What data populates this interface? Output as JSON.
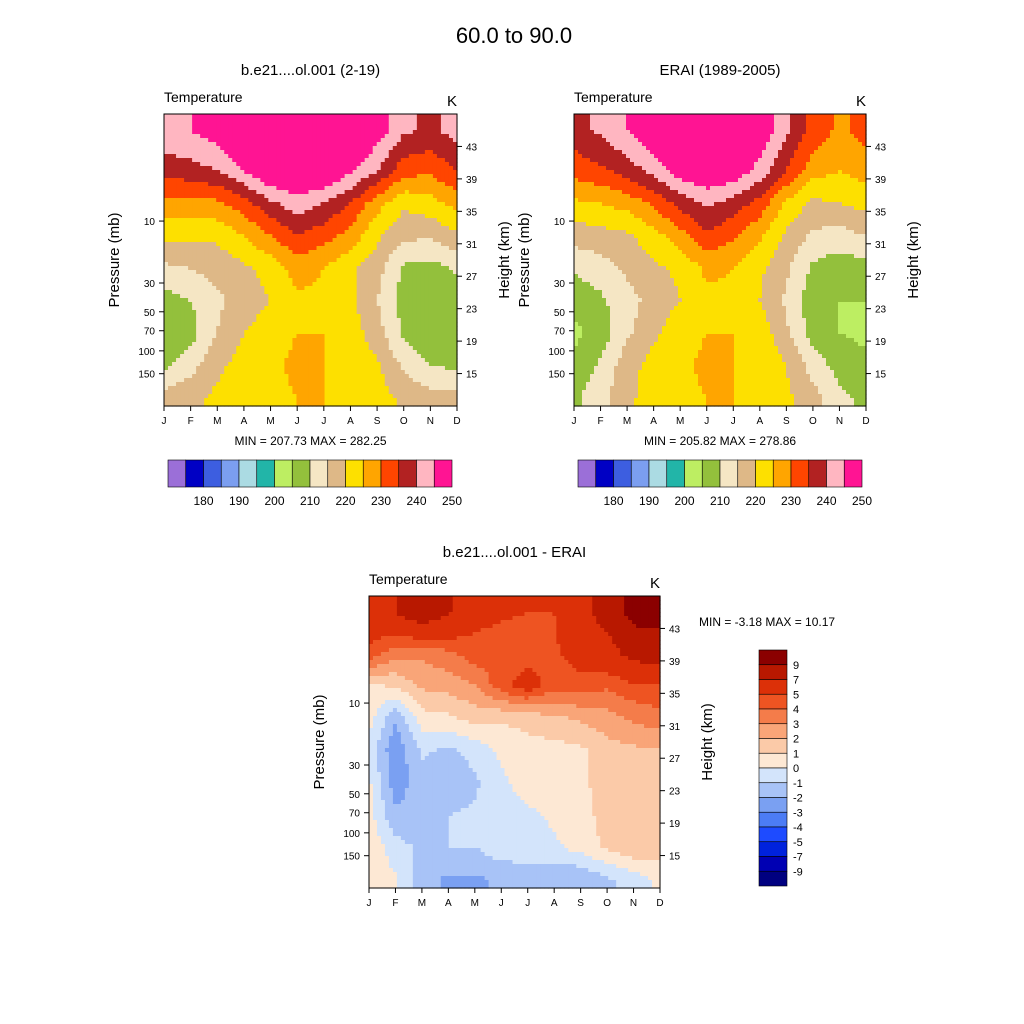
{
  "figure": {
    "title": "60.0 to  90.0"
  },
  "colors": {
    "abs_palette": [
      "#9b6fd8",
      "#0000c4",
      "#3d5ee0",
      "#7b9ef0",
      "#abdbe3",
      "#22b5a8",
      "#bdee62",
      "#93c03c",
      "#f5e6c4",
      "#deb887",
      "#fde000",
      "#ffa500",
      "#ff4500",
      "#b22222",
      "#ffb6c1",
      "#ff1493"
    ],
    "diff_palette": [
      "#000080",
      "#0000b3",
      "#0022dd",
      "#1e4bff",
      "#4c7cf5",
      "#7aa0f2",
      "#a8c3f7",
      "#d3e4fb",
      "#fde8d4",
      "#fbcaa8",
      "#f9a578",
      "#f47c4a",
      "#ee5422",
      "#dc3008",
      "#b81800",
      "#8b0000"
    ]
  },
  "months": [
    "J",
    "F",
    "M",
    "A",
    "M",
    "J",
    "J",
    "A",
    "S",
    "O",
    "N",
    "D"
  ],
  "pressure_ticks": [
    "10",
    "30",
    "50",
    "70",
    "100",
    "150"
  ],
  "height_ticks": [
    "43",
    "39",
    "35",
    "31",
    "27",
    "23",
    "19",
    "15"
  ],
  "labels": {
    "left_ylabel": "Pressure (mb)",
    "right_ylabel": "Height (km)",
    "variable": "Temperature",
    "units": "K"
  },
  "panels": {
    "model": {
      "title": "b.e21....ol.001 (2-19)",
      "stats": "MIN = 207.73  MAX = 282.25"
    },
    "obs": {
      "title": "ERAI (1989-2005)",
      "stats": "MIN = 205.82  MAX = 278.86"
    },
    "diff": {
      "title": "b.e21....ol.001 - ERAI",
      "stats": "MIN =  -3.18  MAX =  10.17"
    }
  },
  "colorbars": {
    "abs_labels": [
      "180",
      "190",
      "200",
      "210",
      "220",
      "230",
      "240",
      "250"
    ],
    "diff_labels": [
      "9",
      "7",
      "5",
      "4",
      "3",
      "2",
      "1",
      "0",
      "-1",
      "-2",
      "-3",
      "-4",
      "-5",
      "-7",
      "-9"
    ]
  },
  "chart_data": [
    {
      "type": "heatmap",
      "title": "b.e21....ol.001 (2-19)",
      "subtitle": "Temperature",
      "units": "K",
      "xlabel": "",
      "ylabel": "Pressure (mb)",
      "y2label": "Height (km)",
      "x": [
        "J",
        "F",
        "M",
        "A",
        "M",
        "J",
        "J",
        "A",
        "S",
        "O",
        "N",
        "D"
      ],
      "y_height_km": [
        12,
        16,
        20,
        24,
        28,
        32,
        36,
        40,
        45
      ],
      "z": [
        [
          222,
          224,
          226,
          228,
          229,
          230,
          230,
          229,
          227,
          224,
          222,
          222
        ],
        [
          214,
          218,
          224,
          227,
          229,
          231,
          230,
          229,
          226,
          219,
          215,
          214
        ],
        [
          211,
          213,
          220,
          225,
          228,
          230,
          230,
          228,
          222,
          214,
          211,
          211
        ],
        [
          213,
          215,
          219,
          222,
          225,
          229,
          229,
          226,
          220,
          213,
          211,
          212
        ],
        [
          219,
          220,
          222,
          224,
          227,
          232,
          230,
          226,
          222,
          214,
          213,
          216
        ],
        [
          226,
          226,
          226,
          230,
          235,
          240,
          237,
          233,
          226,
          221,
          221,
          224
        ],
        [
          233,
          233,
          234,
          238,
          244,
          248,
          245,
          240,
          232,
          226,
          228,
          232
        ],
        [
          242,
          243,
          245,
          250,
          256,
          256,
          256,
          251,
          245,
          237,
          236,
          240
        ],
        [
          249,
          250,
          253,
          257,
          260,
          263,
          260,
          258,
          253,
          246,
          244,
          247
        ]
      ],
      "min": 207.73,
      "max": 282.25
    },
    {
      "type": "heatmap",
      "title": "ERAI (1989-2005)",
      "subtitle": "Temperature",
      "units": "K",
      "xlabel": "",
      "ylabel": "Pressure (mb)",
      "y2label": "Height (km)",
      "x": [
        "J",
        "F",
        "M",
        "A",
        "M",
        "J",
        "J",
        "A",
        "S",
        "O",
        "N",
        "D"
      ],
      "y_height_km": [
        12,
        16,
        20,
        24,
        28,
        32,
        36,
        40,
        45
      ],
      "z": [
        [
          214,
          218,
          224,
          227,
          229,
          230,
          230,
          229,
          226,
          222,
          216,
          214
        ],
        [
          211,
          216,
          223,
          227,
          229,
          231,
          230,
          229,
          225,
          218,
          213,
          211
        ],
        [
          209,
          212,
          219,
          224,
          228,
          230,
          230,
          228,
          221,
          213,
          210,
          209
        ],
        [
          211,
          214,
          218,
          222,
          225,
          229,
          229,
          225,
          219,
          212,
          210,
          210
        ],
        [
          216,
          218,
          221,
          224,
          226,
          231,
          230,
          226,
          221,
          214,
          212,
          213
        ],
        [
          222,
          223,
          224,
          228,
          233,
          239,
          236,
          231,
          224,
          219,
          218,
          220
        ],
        [
          229,
          230,
          232,
          236,
          242,
          246,
          243,
          238,
          229,
          224,
          225,
          227
        ],
        [
          237,
          239,
          242,
          247,
          253,
          255,
          254,
          248,
          240,
          232,
          230,
          232
        ],
        [
          243,
          246,
          250,
          255,
          260,
          262,
          259,
          254,
          246,
          238,
          234,
          237
        ]
      ],
      "min": 205.82,
      "max": 278.86
    },
    {
      "type": "heatmap",
      "title": "b.e21....ol.001 - ERAI",
      "subtitle": "Temperature",
      "units": "K",
      "xlabel": "",
      "ylabel": "Pressure (mb)",
      "y2label": "Height (km)",
      "x": [
        "J",
        "F",
        "M",
        "A",
        "M",
        "J",
        "J",
        "A",
        "S",
        "O",
        "N",
        "D"
      ],
      "y_height_km": [
        12,
        16,
        20,
        24,
        28,
        32,
        36,
        40,
        45
      ],
      "z": [
        [
          0.6,
          0.2,
          -1.6,
          -2.2,
          -2.2,
          -1.8,
          -1.4,
          -1.8,
          -2.0,
          -1.2,
          -0.6,
          0.2
        ],
        [
          0.8,
          -0.6,
          -1.2,
          -1.0,
          -1.0,
          -0.4,
          -0.6,
          -0.2,
          0.4,
          1.2,
          1.8,
          1.6
        ],
        [
          0.4,
          -1.8,
          -1.6,
          -1.0,
          -0.8,
          -0.4,
          -0.2,
          0.2,
          0.6,
          1.4,
          1.8,
          1.6
        ],
        [
          0.2,
          -2.6,
          -1.4,
          -1.8,
          -1.2,
          -0.2,
          0.4,
          0.6,
          0.8,
          1.4,
          1.8,
          1.6
        ],
        [
          -0.4,
          -2.8,
          -0.8,
          -1.2,
          -0.6,
          0.2,
          0.6,
          0.6,
          0.8,
          1.6,
          1.8,
          2.0
        ],
        [
          0.4,
          -1.8,
          0.6,
          0.8,
          1.4,
          1.2,
          1.4,
          1.8,
          2.2,
          2.6,
          3.2,
          3.6
        ],
        [
          0.8,
          1.2,
          2.2,
          2.4,
          3.0,
          4.6,
          5.8,
          4.4,
          4.6,
          4.2,
          4.8,
          5.0
        ],
        [
          4.8,
          3.4,
          3.2,
          3.8,
          4.6,
          4.4,
          4.2,
          4.8,
          5.6,
          6.2,
          7.8,
          8.0
        ],
        [
          6.2,
          7.0,
          8.6,
          7.2,
          5.4,
          5.2,
          5.0,
          5.0,
          6.4,
          7.8,
          9.6,
          9.8
        ]
      ],
      "min": -3.18,
      "max": 10.17
    }
  ]
}
